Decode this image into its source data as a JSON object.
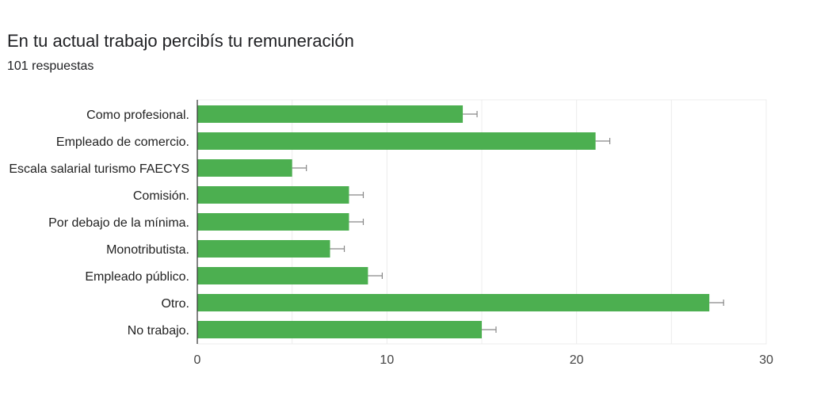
{
  "title": "En tu actual trabajo percibís tu remuneración",
  "subtitle": "101 respuestas",
  "colors": {
    "bar": "#4caf50",
    "error_bar": "#888888",
    "grid": "#ececec",
    "axis": "#333333"
  },
  "chart_data": {
    "type": "bar",
    "orientation": "horizontal",
    "title": "En tu actual trabajo percibís tu remuneración",
    "subtitle": "101 respuestas",
    "categories": [
      "Como profesional.",
      "Empleado de comercio.",
      "Escala salarial turismo FAECYS",
      "Comisión.",
      "Por debajo de la mínima.",
      "Monotributista.",
      "Empleado público.",
      "Otro.",
      "No trabajo."
    ],
    "values": [
      14,
      21,
      5,
      8,
      8,
      7,
      9,
      27,
      15
    ],
    "xlim": [
      0,
      30
    ],
    "x_ticks": [
      0,
      10,
      20,
      30
    ],
    "grid": true,
    "error_bars": true
  }
}
